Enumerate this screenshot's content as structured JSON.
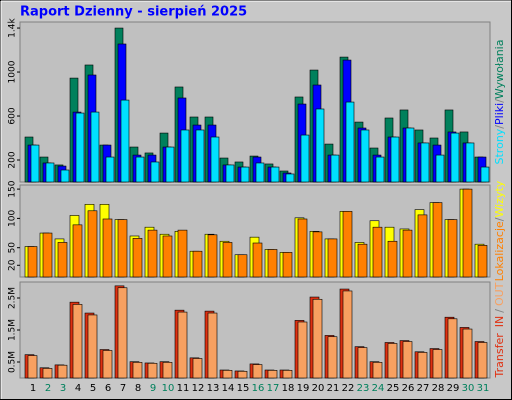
{
  "title": "Raport Dzienny -  sierpień 2025",
  "separator": "/",
  "chart_data": [
    {
      "type": "bar",
      "yticks": [
        200,
        600,
        1000,
        {
          "value": 1400,
          "label": "1.4k"
        }
      ],
      "ylim": [
        0,
        1455
      ],
      "series": [
        {
          "name": "Wywołania",
          "color": "#00805c",
          "values": [
            409,
            227,
            155,
            945,
            1064,
            336,
            1400,
            318,
            264,
            445,
            864,
            591,
            591,
            218,
            182,
            236,
            164,
            100,
            773,
            1018,
            345,
            1136,
            545,
            309,
            582,
            655,
            473,
            400,
            655,
            455,
            227
          ]
        },
        {
          "name": "Pliki",
          "color": "#0000ff",
          "values": [
            336,
            173,
            145,
            636,
            973,
            336,
            1255,
            245,
            245,
            318,
            764,
            518,
            518,
            155,
            136,
            227,
            136,
            82,
            709,
            882,
            245,
            1109,
            491,
            245,
            409,
            491,
            355,
            336,
            455,
            355,
            227
          ]
        },
        {
          "name": "Strony",
          "color": "#00e0ff",
          "values": [
            336,
            173,
            109,
            627,
            636,
            227,
            745,
            227,
            182,
            318,
            473,
            473,
            409,
            155,
            136,
            173,
            136,
            73,
            427,
            664,
            245,
            727,
            473,
            227,
            409,
            491,
            355,
            245,
            445,
            355,
            136
          ]
        }
      ]
    },
    {
      "type": "bar",
      "yticks": [
        20,
        50,
        100,
        150
      ],
      "ylim": [
        0,
        157
      ],
      "series": [
        {
          "name": "Wizyty",
          "color": "#ffff00",
          "values": [
            52,
            75,
            65,
            105,
            124,
            124,
            98,
            70,
            85,
            73,
            78,
            44,
            73,
            61,
            38,
            68,
            47,
            42,
            101,
            78,
            65,
            112,
            59,
            96,
            85,
            82,
            115,
            127,
            98,
            150,
            56
          ]
        },
        {
          "name": "Lokalizacje",
          "color": "#ff8000",
          "values": [
            52,
            75,
            59,
            89,
            113,
            99,
            98,
            66,
            80,
            70,
            80,
            44,
            72,
            59,
            38,
            58,
            47,
            42,
            99,
            77,
            65,
            112,
            56,
            85,
            61,
            80,
            106,
            127,
            98,
            150,
            54
          ]
        }
      ]
    },
    {
      "type": "bar",
      "label": "Transfer",
      "yticks": [
        {
          "value": 0.5,
          "label": "0.5M"
        },
        {
          "value": 1.5,
          "label": "1.5M"
        },
        {
          "value": 2.5,
          "label": "2.5M"
        }
      ],
      "ylim": [
        0,
        3.0
      ],
      "categories": [
        "1",
        "2",
        "3",
        "4",
        "5",
        "6",
        "7",
        "8",
        "9",
        "10",
        "11",
        "12",
        "13",
        "14",
        "15",
        "16",
        "17",
        "18",
        "19",
        "20",
        "21",
        "22",
        "23",
        "24",
        "25",
        "26",
        "27",
        "28",
        "29",
        "30",
        "31"
      ],
      "category_colors": [
        "#000000",
        "#00805c",
        "#00805c",
        "#000000",
        "#000000",
        "#000000",
        "#000000",
        "#000000",
        "#00805c",
        "#00805c",
        "#000000",
        "#000000",
        "#000000",
        "#000000",
        "#000000",
        "#00805c",
        "#00805c",
        "#000000",
        "#000000",
        "#000000",
        "#000000",
        "#000000",
        "#00805c",
        "#00805c",
        "#000000",
        "#000000",
        "#000000",
        "#000000",
        "#000000",
        "#00805c",
        "#00805c"
      ],
      "series": [
        {
          "name": "IN",
          "color": "#e03010",
          "values": [
            0.73,
            0.32,
            0.41,
            2.37,
            2.03,
            0.89,
            2.88,
            0.51,
            0.47,
            0.51,
            2.12,
            0.63,
            2.09,
            0.25,
            0.22,
            0.44,
            0.25,
            0.25,
            1.8,
            2.53,
            1.33,
            2.78,
            0.98,
            0.51,
            1.11,
            1.17,
            0.82,
            0.92,
            1.9,
            1.58,
            1.14
          ]
        },
        {
          "name": "OUT",
          "color": "#f8a060",
          "values": [
            0.7,
            0.3,
            0.4,
            2.3,
            1.97,
            0.86,
            2.82,
            0.49,
            0.46,
            0.49,
            2.06,
            0.61,
            2.03,
            0.24,
            0.21,
            0.42,
            0.24,
            0.24,
            1.75,
            2.46,
            1.29,
            2.72,
            0.95,
            0.49,
            1.08,
            1.14,
            0.8,
            0.89,
            1.85,
            1.53,
            1.11
          ]
        }
      ]
    }
  ]
}
